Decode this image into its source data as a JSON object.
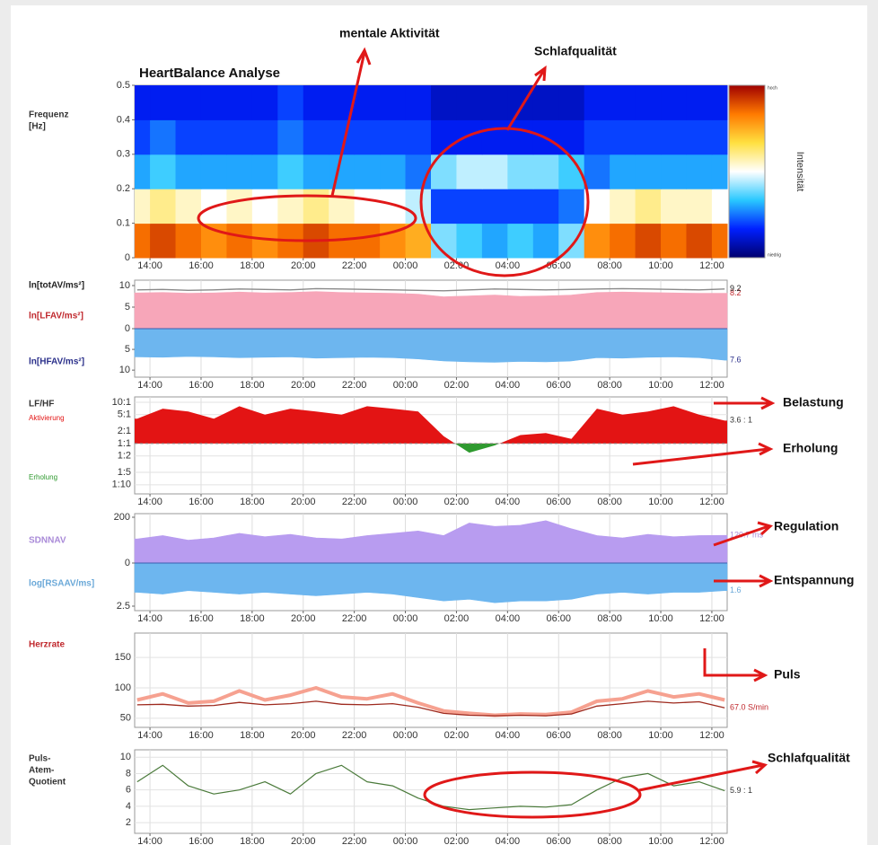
{
  "annotations": [
    "mentale Aktivität",
    "Schlafqualität",
    "Belastung",
    "Erholung",
    "Regulation",
    "Entspannung",
    "Puls",
    "Schlafqualität"
  ],
  "chart_data": [
    {
      "type": "heatmap",
      "title": "HeartBalance Analyse",
      "ylabel": [
        "Frequenz",
        "[Hz]"
      ],
      "colorbar_label": "Intensität",
      "colorbar_ends": [
        "niedrig",
        "hoch"
      ],
      "colormap": [
        "#00006e",
        "#0020ff",
        "#29c8ff",
        "#ffffff",
        "#ffe040",
        "#ff7a00",
        "#a00000"
      ],
      "xlim": [
        -0.6,
        22.6
      ],
      "xticks": [
        {
          "value": 0,
          "label": "14:00"
        },
        {
          "value": 2,
          "label": "16:00"
        },
        {
          "value": 4,
          "label": "18:00"
        },
        {
          "value": 6,
          "label": "20:00"
        },
        {
          "value": 8,
          "label": "22:00"
        },
        {
          "value": 10,
          "label": "00:00"
        },
        {
          "value": 12,
          "label": "02:00"
        },
        {
          "value": 14,
          "label": "04:00"
        },
        {
          "value": 16,
          "label": "06:00"
        },
        {
          "value": 18,
          "label": "08:00"
        },
        {
          "value": 20,
          "label": "10:00"
        },
        {
          "value": 22,
          "label": "12:00"
        }
      ],
      "ylim": [
        0,
        0.5
      ],
      "yticks": [
        0,
        0.1,
        0.2,
        0.3,
        0.4,
        0.5
      ],
      "ybins": [
        0,
        0.1,
        0.2,
        0.3,
        0.4,
        0.5
      ],
      "x": [
        -0.5,
        0.5,
        1.5,
        2.5,
        3.5,
        4.5,
        5.5,
        6.5,
        7.5,
        8.5,
        9.5,
        10.5,
        11.5,
        12.5,
        13.5,
        14.5,
        15.5,
        16.5,
        17.5,
        18.5,
        19.5,
        20.5,
        21.5,
        22.5
      ],
      "z": [
        [
          0.85,
          0.9,
          0.85,
          0.8,
          0.85,
          0.8,
          0.85,
          0.9,
          0.85,
          0.85,
          0.8,
          0.75,
          0.4,
          0.35,
          0.3,
          0.35,
          0.3,
          0.4,
          0.8,
          0.85,
          0.9,
          0.85,
          0.9,
          0.85
        ],
        [
          0.55,
          0.6,
          0.55,
          0.5,
          0.55,
          0.5,
          0.55,
          0.6,
          0.55,
          0.5,
          0.5,
          0.45,
          0.2,
          0.2,
          0.2,
          0.2,
          0.2,
          0.25,
          0.5,
          0.55,
          0.6,
          0.55,
          0.55,
          0.5
        ],
        [
          0.3,
          0.35,
          0.3,
          0.3,
          0.3,
          0.3,
          0.35,
          0.3,
          0.3,
          0.3,
          0.3,
          0.25,
          0.4,
          0.45,
          0.45,
          0.4,
          0.4,
          0.35,
          0.25,
          0.3,
          0.3,
          0.3,
          0.3,
          0.3
        ],
        [
          0.2,
          0.25,
          0.2,
          0.2,
          0.2,
          0.2,
          0.25,
          0.2,
          0.2,
          0.2,
          0.2,
          0.2,
          0.15,
          0.15,
          0.15,
          0.15,
          0.15,
          0.15,
          0.2,
          0.2,
          0.2,
          0.2,
          0.2,
          0.2
        ],
        [
          0.15,
          0.15,
          0.15,
          0.15,
          0.15,
          0.15,
          0.2,
          0.15,
          0.15,
          0.15,
          0.15,
          0.15,
          0.1,
          0.1,
          0.1,
          0.1,
          0.1,
          0.1,
          0.15,
          0.15,
          0.15,
          0.15,
          0.15,
          0.15
        ]
      ]
    },
    {
      "type": "mirror",
      "xlim": [
        -0.6,
        22.6
      ],
      "xticks": [
        {
          "value": 0,
          "label": "14:00"
        },
        {
          "value": 2,
          "label": "16:00"
        },
        {
          "value": 4,
          "label": "18:00"
        },
        {
          "value": 6,
          "label": "20:00"
        },
        {
          "value": 8,
          "label": "22:00"
        },
        {
          "value": 10,
          "label": "00:00"
        },
        {
          "value": 12,
          "label": "02:00"
        },
        {
          "value": 14,
          "label": "04:00"
        },
        {
          "value": 16,
          "label": "06:00"
        },
        {
          "value": 18,
          "label": "08:00"
        },
        {
          "value": 20,
          "label": "10:00"
        },
        {
          "value": 22,
          "label": "12:00"
        }
      ],
      "ylim": [
        0,
        11.25
      ],
      "yticks": [
        0,
        5,
        10
      ],
      "y2lim": [
        0,
        11.7
      ],
      "y2ticks": [
        5,
        10
      ],
      "x": [
        -0.5,
        0.5,
        1.5,
        2.5,
        3.5,
        4.5,
        5.5,
        6.5,
        7.5,
        8.5,
        9.5,
        10.5,
        11.5,
        12.5,
        13.5,
        14.5,
        15.5,
        16.5,
        17.5,
        18.5,
        19.5,
        20.5,
        21.5,
        22.5
      ],
      "series": [
        {
          "name": "ln[LFAV/ms²]",
          "color": "#f7a6b9",
          "label_color": "#c0282d",
          "style": "area",
          "summary": "8.2",
          "values": [
            8.3,
            8.4,
            8.2,
            8.3,
            8.5,
            8.3,
            8.4,
            8.6,
            8.4,
            8.3,
            8.2,
            8.0,
            7.4,
            7.6,
            7.8,
            7.5,
            7.6,
            7.8,
            8.4,
            8.5,
            8.4,
            8.3,
            8.2,
            8.2
          ]
        },
        {
          "name": "ln[totAV/ms²]",
          "color": "#8a8a8a",
          "label_color": "#222222",
          "style": "line",
          "summary": "9.2",
          "values": [
            9.0,
            9.1,
            8.9,
            9.0,
            9.2,
            9.1,
            9.0,
            9.3,
            9.2,
            9.1,
            9.0,
            8.9,
            8.8,
            9.0,
            9.2,
            9.1,
            9.0,
            9.1,
            9.2,
            9.3,
            9.2,
            9.1,
            9.0,
            9.2
          ]
        },
        {
          "name": "ln[HFAV/ms²]",
          "color": "#6db6ef",
          "label_color": "#2a2f8a",
          "style": "area",
          "axis": "y2",
          "summary": "7.6",
          "values": [
            6.8,
            6.9,
            6.7,
            6.8,
            7.0,
            6.9,
            6.8,
            7.1,
            7.0,
            6.9,
            7.0,
            7.3,
            7.8,
            8.0,
            8.1,
            7.9,
            8.0,
            7.8,
            7.0,
            7.1,
            6.9,
            6.8,
            7.0,
            7.6
          ]
        }
      ]
    },
    {
      "type": "ratio",
      "ylabel": "LF/HF",
      "above_label": "Aktivierung",
      "below_label": "Erholung",
      "above_color": "#e31414",
      "below_color": "#2f9a2f",
      "yscale": "log",
      "baseline": 1,
      "summary": "3.6 : 1",
      "xlim": [
        -0.6,
        22.6
      ],
      "xticks": [
        {
          "value": 0,
          "label": "14:00"
        },
        {
          "value": 2,
          "label": "16:00"
        },
        {
          "value": 4,
          "label": "18:00"
        },
        {
          "value": 6,
          "label": "20:00"
        },
        {
          "value": 8,
          "label": "22:00"
        },
        {
          "value": 10,
          "label": "00:00"
        },
        {
          "value": 12,
          "label": "02:00"
        },
        {
          "value": 14,
          "label": "04:00"
        },
        {
          "value": 16,
          "label": "06:00"
        },
        {
          "value": 18,
          "label": "08:00"
        },
        {
          "value": 20,
          "label": "10:00"
        },
        {
          "value": 22,
          "label": "12:00"
        }
      ],
      "ylim": [
        0.06,
        13.5
      ],
      "yticks": [
        {
          "value": 10,
          "label": "10:1"
        },
        {
          "value": 5,
          "label": "5:1"
        },
        {
          "value": 2,
          "label": "2:1"
        },
        {
          "value": 1,
          "label": "1:1"
        },
        {
          "value": 0.5,
          "label": "1:2"
        },
        {
          "value": 0.2,
          "label": "1:5"
        },
        {
          "value": 0.1,
          "label": "1:10"
        }
      ],
      "x": [
        -0.5,
        0.5,
        1.5,
        2.5,
        3.5,
        4.5,
        5.5,
        6.5,
        7.5,
        8.5,
        9.5,
        10.5,
        11.5,
        12.5,
        13.5,
        14.5,
        15.5,
        16.5,
        17.5,
        18.5,
        19.5,
        20.5,
        21.5,
        22.5
      ],
      "values": [
        4,
        7,
        6,
        4,
        8,
        5,
        7,
        6,
        5,
        8,
        7,
        6,
        1.5,
        0.6,
        0.9,
        1.6,
        1.8,
        1.3,
        7,
        5,
        6,
        8,
        5,
        3.6
      ]
    },
    {
      "type": "mirror",
      "xlim": [
        -0.6,
        22.6
      ],
      "xticks": [
        {
          "value": 0,
          "label": "14:00"
        },
        {
          "value": 2,
          "label": "16:00"
        },
        {
          "value": 4,
          "label": "18:00"
        },
        {
          "value": 6,
          "label": "20:00"
        },
        {
          "value": 8,
          "label": "22:00"
        },
        {
          "value": 10,
          "label": "00:00"
        },
        {
          "value": 12,
          "label": "02:00"
        },
        {
          "value": 14,
          "label": "04:00"
        },
        {
          "value": 16,
          "label": "06:00"
        },
        {
          "value": 18,
          "label": "08:00"
        },
        {
          "value": 20,
          "label": "10:00"
        },
        {
          "value": 22,
          "label": "12:00"
        }
      ],
      "ylim": [
        0,
        215.7
      ],
      "yticks": [
        0,
        200
      ],
      "y2lim": [
        0,
        2.76
      ],
      "y2ticks": [
        2.5
      ],
      "x": [
        -0.5,
        0.5,
        1.5,
        2.5,
        3.5,
        4.5,
        5.5,
        6.5,
        7.5,
        8.5,
        9.5,
        10.5,
        11.5,
        12.5,
        13.5,
        14.5,
        15.5,
        16.5,
        17.5,
        18.5,
        19.5,
        20.5,
        21.5,
        22.5
      ],
      "series": [
        {
          "name": "SDNNAV",
          "color": "#b89cf0",
          "label_color": "#a98ad8",
          "style": "area",
          "summary": "120.7 ms",
          "values": [
            105,
            120,
            100,
            110,
            130,
            115,
            125,
            110,
            105,
            120,
            130,
            140,
            120,
            175,
            160,
            165,
            185,
            150,
            120,
            110,
            125,
            115,
            120,
            120.7
          ]
        },
        {
          "name": "log[RSAAV/ms]",
          "color": "#6db6ef",
          "label_color": "#6aa8d8",
          "style": "area",
          "axis": "y2",
          "summary": "1.6",
          "values": [
            1.7,
            1.8,
            1.6,
            1.7,
            1.8,
            1.7,
            1.8,
            1.9,
            1.8,
            1.7,
            1.8,
            2.0,
            2.2,
            2.1,
            2.3,
            2.2,
            2.2,
            2.1,
            1.8,
            1.7,
            1.8,
            1.7,
            1.7,
            1.6
          ]
        }
      ]
    },
    {
      "type": "line",
      "ylabel": "Herzrate",
      "label_color": "#c0282d",
      "summary": "67.0 S/min",
      "xlim": [
        -0.6,
        22.6
      ],
      "xticks": [
        {
          "value": 0,
          "label": "14:00"
        },
        {
          "value": 2,
          "label": "16:00"
        },
        {
          "value": 4,
          "label": "18:00"
        },
        {
          "value": 6,
          "label": "20:00"
        },
        {
          "value": 8,
          "label": "22:00"
        },
        {
          "value": 10,
          "label": "00:00"
        },
        {
          "value": 12,
          "label": "02:00"
        },
        {
          "value": 14,
          "label": "04:00"
        },
        {
          "value": 16,
          "label": "06:00"
        },
        {
          "value": 18,
          "label": "08:00"
        },
        {
          "value": 20,
          "label": "10:00"
        },
        {
          "value": 22,
          "label": "12:00"
        }
      ],
      "ylim": [
        35,
        190
      ],
      "yticks": [
        50,
        100,
        150
      ],
      "grid": true,
      "x": [
        -0.5,
        0.5,
        1.5,
        2.5,
        3.5,
        4.5,
        5.5,
        6.5,
        7.5,
        8.5,
        9.5,
        10.5,
        11.5,
        12.5,
        13.5,
        14.5,
        15.5,
        16.5,
        17.5,
        18.5,
        19.5,
        20.5,
        21.5,
        22.5
      ],
      "series": [
        {
          "color": "#f6a190",
          "width": 4,
          "values": [
            80,
            90,
            75,
            78,
            95,
            80,
            88,
            100,
            85,
            82,
            90,
            75,
            62,
            58,
            55,
            57,
            56,
            60,
            78,
            82,
            95,
            85,
            90,
            80
          ]
        },
        {
          "color": "#9e2a1e",
          "width": 1.3,
          "values": [
            72,
            73,
            70,
            71,
            76,
            72,
            74,
            78,
            73,
            72,
            74,
            68,
            58,
            55,
            54,
            55,
            54,
            57,
            70,
            74,
            78,
            75,
            77,
            67
          ]
        }
      ]
    },
    {
      "type": "line",
      "ylabel": [
        "Puls-",
        "Atem-",
        "Quotient"
      ],
      "label_color": "#333333",
      "summary": "5.9 : 1",
      "xlim": [
        -0.6,
        22.6
      ],
      "xticks": [
        {
          "value": 0,
          "label": "14:00"
        },
        {
          "value": 2,
          "label": "16:00"
        },
        {
          "value": 4,
          "label": "18:00"
        },
        {
          "value": 6,
          "label": "20:00"
        },
        {
          "value": 8,
          "label": "22:00"
        },
        {
          "value": 10,
          "label": "00:00"
        },
        {
          "value": 12,
          "label": "02:00"
        },
        {
          "value": 14,
          "label": "04:00"
        },
        {
          "value": 16,
          "label": "06:00"
        },
        {
          "value": 18,
          "label": "08:00"
        },
        {
          "value": 20,
          "label": "10:00"
        },
        {
          "value": 22,
          "label": "12:00"
        }
      ],
      "ylim": [
        0.7,
        10.9
      ],
      "yticks": [
        2,
        4,
        6,
        8,
        10
      ],
      "grid": true,
      "x": [
        -0.5,
        0.5,
        1.5,
        2.5,
        3.5,
        4.5,
        5.5,
        6.5,
        7.5,
        8.5,
        9.5,
        10.5,
        11.5,
        12.5,
        13.5,
        14.5,
        15.5,
        16.5,
        17.5,
        18.5,
        19.5,
        20.5,
        21.5,
        22.5
      ],
      "series": [
        {
          "color": "#4a7a3a",
          "width": 1.2,
          "values": [
            7,
            9,
            6.5,
            5.5,
            6,
            7,
            5.5,
            8,
            9,
            7,
            6.5,
            5,
            4,
            3.6,
            3.8,
            4,
            3.9,
            4.2,
            6,
            7.5,
            8,
            6.5,
            7,
            5.9
          ]
        }
      ]
    }
  ]
}
